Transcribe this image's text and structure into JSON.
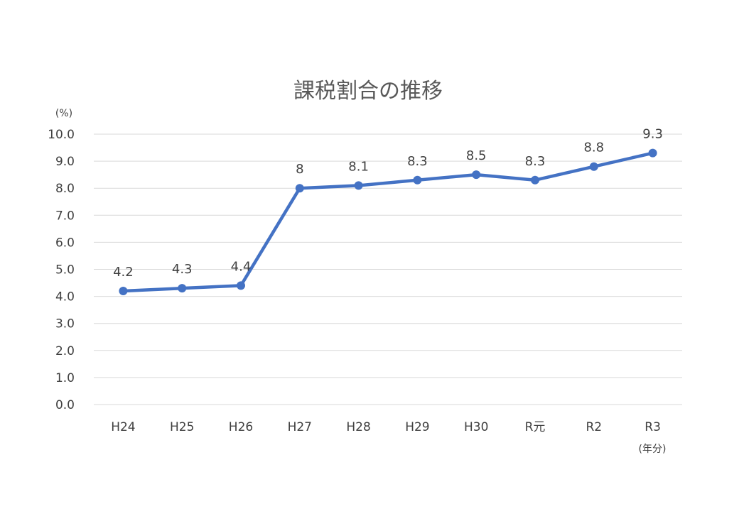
{
  "chart_data": {
    "type": "line",
    "title": "課税割合の推移",
    "ylabel": "(%)",
    "xlabel": "(年分)",
    "categories": [
      "H24",
      "H25",
      "H26",
      "H27",
      "H28",
      "H29",
      "H30",
      "R元",
      "R2",
      "R3"
    ],
    "series": [
      {
        "values": [
          4.2,
          4.3,
          4.4,
          8,
          8.1,
          8.3,
          8.5,
          8.3,
          8.8,
          9.3
        ],
        "data_labels": [
          "4.2",
          "4.3",
          "4.4",
          "8",
          "8.1",
          "8.3",
          "8.5",
          "8.3",
          "8.8",
          "9.3"
        ],
        "color": "#4472c4"
      }
    ],
    "ylim": [
      0,
      10
    ],
    "yticks": [
      "0.0",
      "1.0",
      "2.0",
      "3.0",
      "4.0",
      "5.0",
      "6.0",
      "7.0",
      "8.0",
      "9.0",
      "10.0"
    ],
    "grid": true,
    "legend": "none"
  }
}
